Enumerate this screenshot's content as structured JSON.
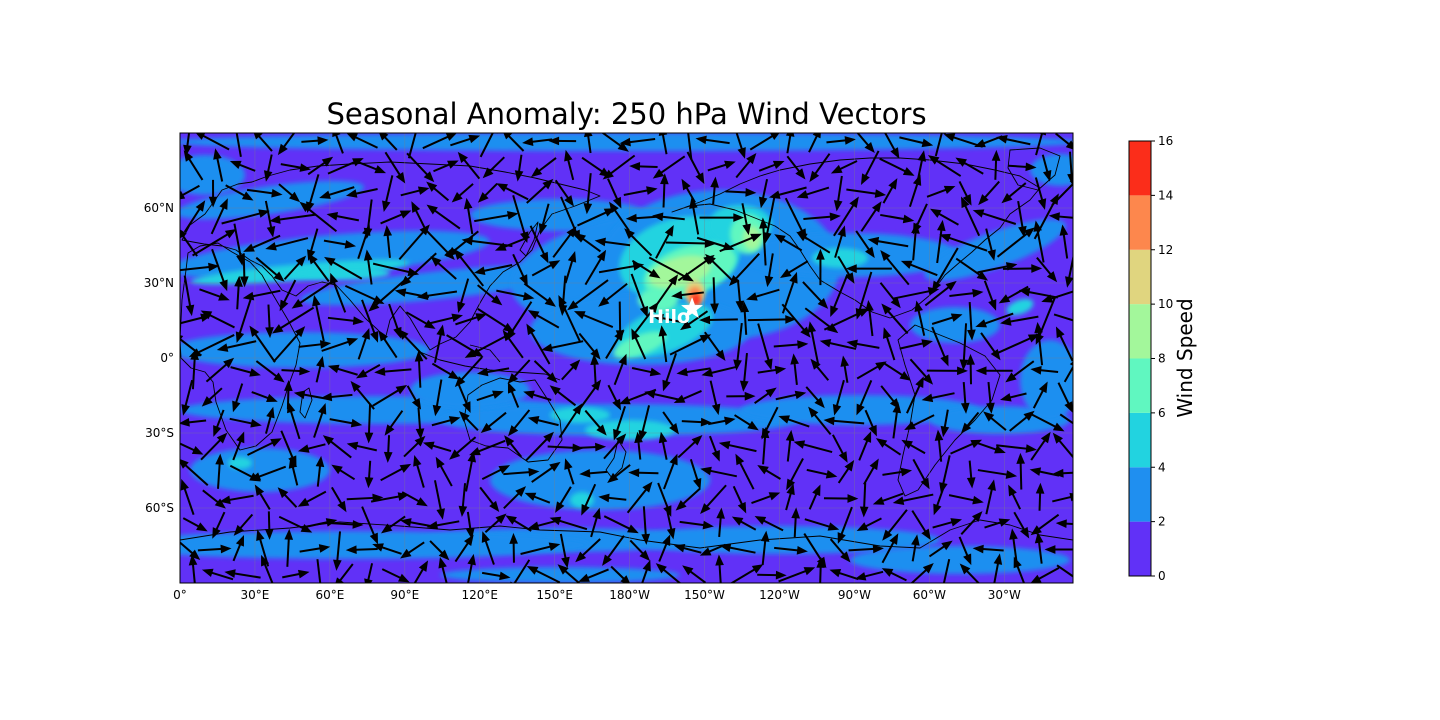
{
  "title": "Seasonal Anomaly: 250 hPa Wind Vectors",
  "map": {
    "lon_range": [
      0,
      357.5
    ],
    "lat_range": [
      -90,
      90
    ],
    "background_color": "#6131f7",
    "x_ticks": [
      "0°",
      "30°E",
      "60°E",
      "90°E",
      "120°E",
      "150°E",
      "180°W",
      "150°W",
      "120°W",
      "90°W",
      "60°W",
      "30°W"
    ],
    "x_tick_lons": [
      0,
      30,
      60,
      90,
      120,
      150,
      180,
      210,
      240,
      270,
      300,
      330
    ],
    "y_ticks": [
      "60°N",
      "30°N",
      "0°",
      "30°S",
      "60°S"
    ],
    "y_tick_lats": [
      60,
      30,
      0,
      -30,
      -60
    ],
    "gridlines": true
  },
  "marker": {
    "label": "Hilo",
    "lon": 205,
    "lat": 19.7,
    "icon": "star-icon",
    "color": "#ffffff"
  },
  "colorbar": {
    "label": "Wind Speed",
    "ticks": [
      "0",
      "2",
      "4",
      "6",
      "8",
      "10",
      "12",
      "14",
      "16"
    ],
    "levels": [
      0,
      2,
      4,
      6,
      8,
      10,
      12,
      14,
      16
    ],
    "colors": [
      "#6131f7",
      "#1f8ff0",
      "#22d3e0",
      "#60f7c0",
      "#a3f79b",
      "#e0d57f",
      "#fd874d",
      "#fb2d1a"
    ]
  },
  "chart_data": {
    "type": "heatmap",
    "title": "Seasonal Anomaly: 250 hPa Wind Vectors",
    "variable": "Wind Speed",
    "value_range": [
      0,
      16
    ],
    "speed_regions": [
      {
        "lon": 195,
        "lat": 28,
        "level": 3
      },
      {
        "lon": 210,
        "lat": 35,
        "level": 4
      },
      {
        "lon": 228,
        "lat": 45,
        "level": 4
      },
      {
        "lon": 205,
        "lat": 22,
        "level": 7
      },
      {
        "lon": 212,
        "lat": 50,
        "level": 3
      },
      {
        "lon": 195,
        "lat": 8,
        "level": 2
      },
      {
        "lon": 70,
        "lat": 33,
        "level": 2
      },
      {
        "lon": 170,
        "lat": -25,
        "level": 2
      },
      {
        "lon": 250,
        "lat": 42,
        "level": 2
      }
    ],
    "vectors": "wind anomaly vectors on a regular global grid"
  }
}
